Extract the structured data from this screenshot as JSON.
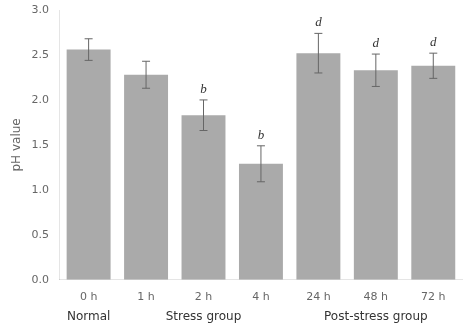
{
  "chart_data": {
    "type": "bar",
    "categories": [
      "0 h",
      "1 h",
      "2 h",
      "4 h",
      "24 h",
      "48 h",
      "72 h"
    ],
    "values": [
      2.56,
      2.28,
      1.83,
      1.29,
      2.52,
      2.33,
      2.38
    ],
    "errors": [
      0.12,
      0.15,
      0.17,
      0.2,
      0.22,
      0.18,
      0.14
    ],
    "color": "#AAAAAA",
    "ylabel": "pH value",
    "ylim": [
      0,
      3.0
    ],
    "yticks": [
      {
        "value": 0,
        "label": "0.0"
      },
      0.5,
      {
        "value": 1.0,
        "label": "1.0"
      },
      1.5,
      {
        "value": 2.0,
        "label": "2.0"
      },
      2.5,
      {
        "value": 3.0,
        "label": "3.0"
      }
    ],
    "annotations": [
      {
        "x": "2 h",
        "text": "b"
      },
      {
        "x": "4 h",
        "text": "b"
      },
      {
        "x": "24 h",
        "text": "d"
      },
      {
        "x": "48 h",
        "text": "d"
      },
      {
        "x": "72 h",
        "text": "d"
      }
    ],
    "groups": [
      {
        "label": "Normal",
        "categories": [
          "0 h"
        ]
      },
      {
        "label": "Stress group",
        "categories": [
          "1 h",
          "2 h",
          "4 h"
        ]
      },
      {
        "label": "Post-stress group",
        "categories": [
          "24 h",
          "48 h",
          "72 h"
        ]
      }
    ],
    "grid": false
  }
}
